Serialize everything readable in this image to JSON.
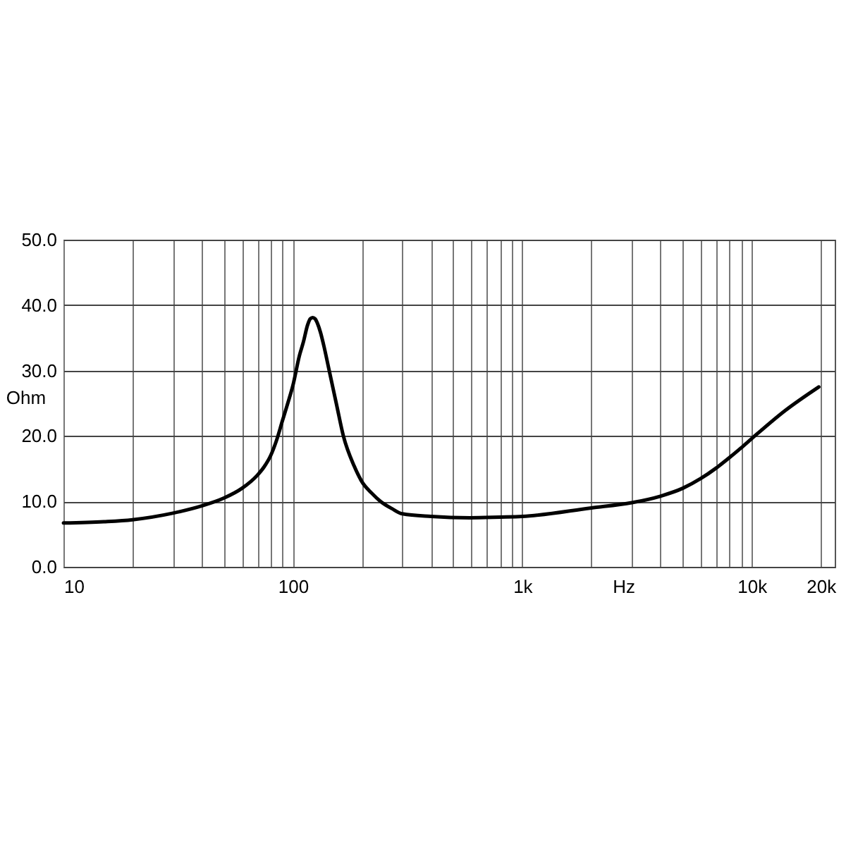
{
  "chart_data": {
    "type": "line",
    "xlabel": "Hz",
    "ylabel": "Ohm",
    "x": [
      10,
      15,
      20,
      30,
      40,
      50,
      60,
      70,
      75,
      80,
      85,
      90,
      95,
      100,
      107,
      111,
      116,
      119,
      122,
      125,
      128,
      132,
      136,
      144,
      155,
      166,
      185,
      200,
      220,
      241,
      270,
      300,
      400,
      590,
      800,
      1000,
      2000,
      3000,
      4000,
      5000,
      6000,
      7000,
      8000,
      9000,
      10000,
      14000,
      19600
    ],
    "series": [
      {
        "color": "#000000",
        "values": [
          6.7,
          6.9,
          7.2,
          8.2,
          9.3,
          10.5,
          12.0,
          14.0,
          15.3,
          17.0,
          19.4,
          22.3,
          25.0,
          27.7,
          32.4,
          34.3,
          37.0,
          37.9,
          38.1,
          37.9,
          37.2,
          35.8,
          34.0,
          30.0,
          24.8,
          20.0,
          15.4,
          13.0,
          11.3,
          10.0,
          8.9,
          8.1,
          7.7,
          7.5,
          7.6,
          7.7,
          9.0,
          9.8,
          10.8,
          12.0,
          13.5,
          15.1,
          16.7,
          18.2,
          19.6,
          23.9,
          27.5
        ]
      }
    ],
    "xlim": [
      10,
      23000
    ],
    "ylim": [
      0,
      50
    ],
    "xticks": [
      10,
      {
        "value": 20,
        "label": null
      },
      {
        "value": 30,
        "label": null
      },
      {
        "value": 40,
        "label": null
      },
      {
        "value": 50,
        "label": null
      },
      {
        "value": 60,
        "label": null
      },
      {
        "value": 70,
        "label": null
      },
      {
        "value": 80,
        "label": null
      },
      {
        "value": 90,
        "label": null
      },
      100,
      {
        "value": 200,
        "label": null
      },
      {
        "value": 300,
        "label": null
      },
      {
        "value": 400,
        "label": null
      },
      {
        "value": 500,
        "label": null
      },
      {
        "value": 600,
        "label": null
      },
      {
        "value": 700,
        "label": null
      },
      {
        "value": 800,
        "label": null
      },
      {
        "value": 900,
        "label": null
      },
      {
        "value": 1000,
        "label": "1k"
      },
      {
        "value": 2000,
        "label": null
      },
      {
        "value": 3000,
        "label": null
      },
      {
        "value": 4000,
        "label": null
      },
      {
        "value": 5000,
        "label": null
      },
      {
        "value": 6000,
        "label": null
      },
      {
        "value": 7000,
        "label": null
      },
      {
        "value": 8000,
        "label": null
      },
      {
        "value": 9000,
        "label": null
      },
      {
        "value": 10000,
        "label": "10k"
      },
      {
        "value": 20000,
        "label": "20k"
      }
    ],
    "yticks": [
      {
        "value": 0,
        "label": "0.0"
      },
      {
        "value": 10,
        "label": "10.0"
      },
      {
        "value": 20,
        "label": "20.0"
      },
      {
        "value": 30,
        "label": "30.0"
      },
      {
        "value": 40,
        "label": "40.0"
      },
      {
        "value": 50,
        "label": "50.0"
      }
    ],
    "log": "x",
    "grid": true,
    "line_style": "solid"
  }
}
